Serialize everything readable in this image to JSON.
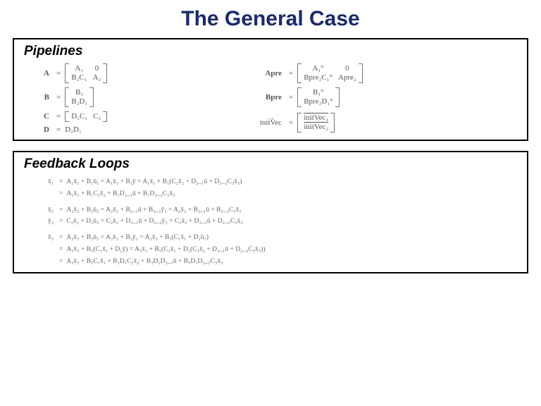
{
  "colors": {
    "title": "#1a2a6c",
    "border": "#000000",
    "math": "#555555",
    "math_faint": "#666666",
    "bracket": "#777777",
    "background": "#ffffff"
  },
  "title": "The General Case",
  "pipelines": {
    "heading": "Pipelines",
    "left": {
      "A": {
        "lhs": "A",
        "m": [
          [
            "A₁",
            "0"
          ],
          [
            "B₂C₁",
            "A₂"
          ]
        ]
      },
      "B": {
        "lhs": "B",
        "m": [
          [
            "B₁"
          ],
          [
            "B₂D₁"
          ]
        ]
      },
      "C": {
        "lhs": "C",
        "m": [
          [
            "D₂C₁",
            "C₂"
          ]
        ]
      },
      "D": {
        "lhs": "D",
        "rhs": "D₂D₁"
      }
    },
    "right": {
      "Apre": {
        "lhs": "Apre",
        "m": [
          [
            "A₁°",
            "0"
          ],
          [
            "Bpre₂C₁°",
            "Apre₂"
          ]
        ]
      },
      "Bpre": {
        "lhs": "Bpre",
        "m": [
          [
            "B₁°"
          ],
          [
            "Bpre₂D₁°"
          ]
        ]
      },
      "initVec": {
        "lhs": "initVec",
        "m": [
          [
            "initVec₁"
          ],
          [
            "initVec₂"
          ]
        ]
      }
    }
  },
  "feedback": {
    "heading": "Feedback Loops",
    "lines": [
      {
        "lhs": "x̄₁",
        "eq": "=",
        "rhs": "A₁x̄₁ + B₁ū₁ = A₁x̄₁ + B₁ȳ = A₁x̄₁ + B₁(C₂x̄₂ + D₂_₁ū + D₂_₂C₃x̄₃)"
      },
      {
        "lhs": "",
        "eq": "=",
        "indent": true,
        "rhs": "A₁x̄₁ + B₁C₂x̄₂ + B₁D₂_₁ū + B₁D₂_₂C₃x̄₃"
      },
      {
        "lhs": "x̄₂",
        "eq": "=",
        "group": true,
        "rhs": "A₂x̄₂ + B₂ū₂ = A₂x̄₂ + B₂_₁ū + B₂_₂ȳ₃ = A₂x̄₂ + B₂_₁ū + B₂_₂C₃x̄₃"
      },
      {
        "lhs": "ȳ₂",
        "eq": "=",
        "rhs": "C₂x̄₂ + D₂ū₂ = C₂x̄₂ + D₂_₁ū + D₂_₂ȳ₃ = C₂x̄₂ + D₂_₁ū + D₂_₂C₃x̄₃"
      },
      {
        "lhs": "x̄₃",
        "eq": "=",
        "group": true,
        "rhs": "A₃x̄₃ + B₃ū₃ = A₃x̄₃ + B₃ȳ₁ = A₃x̄₃ + B₃(C₁x̄₁ + D₁ū₁)"
      },
      {
        "lhs": "",
        "eq": "=",
        "indent": true,
        "rhs": "A₃x̄₃ + B₃(C₁x̄₁ + D₁ȳ) = A₃x̄₃ + B₃(C₁x̄₁ + D₁(C₂x̄₂ + D₂_₁ū + D₂_₂C₃x̄₃))"
      },
      {
        "lhs": "",
        "eq": "=",
        "indent": true,
        "rhs": "A₃x̄₃ + B₃C₁x̄₁ + B₃D₁C₂x̄₂ + B₃D₁D₂_₁ū + B₃D₁D₂_₂C₃x̄₃"
      }
    ]
  }
}
